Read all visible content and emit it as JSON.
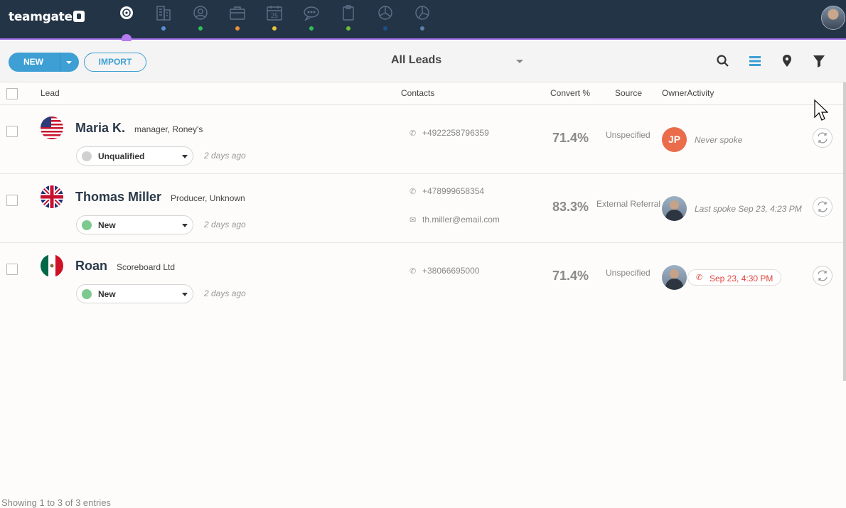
{
  "app": {
    "logo_text": "teamgate"
  },
  "nav": {
    "icons": [
      {
        "name": "leads-target-icon",
        "dot_color": "#a06ee8"
      },
      {
        "name": "companies-building-icon",
        "dot_color": "#5b8fd6"
      },
      {
        "name": "contacts-person-icon",
        "dot_color": "#2fbf5a"
      },
      {
        "name": "deals-briefcase-icon",
        "dot_color": "#e8913a"
      },
      {
        "name": "calendar-icon",
        "dot_color": "#e8c53a",
        "text": "25"
      },
      {
        "name": "chat-icon",
        "dot_color": "#2fbf5a"
      },
      {
        "name": "clipboard-icon",
        "dot_color": "#6cbf2f"
      },
      {
        "name": "reports-pie-icon",
        "dot_color": "#1d4f8a"
      },
      {
        "name": "analytics-pie-icon",
        "dot_color": "#5b7fa6"
      }
    ]
  },
  "toolbar": {
    "new_label": "NEW",
    "import_label": "IMPORT",
    "view_label": "All Leads",
    "icons": [
      "search-icon",
      "list-view-icon",
      "map-pin-icon",
      "filter-icon"
    ]
  },
  "table": {
    "headers": {
      "lead": "Lead",
      "contacts": "Contacts",
      "convert": "Convert %",
      "source": "Source",
      "owner_activity": "OwnerActivity"
    },
    "rows": [
      {
        "flag": "us-flag-icon",
        "name": "Maria K.",
        "subtitle": "manager, Roney's",
        "status": "Unqualified",
        "status_color": "#d0d0d0",
        "ago": "2 days ago",
        "phone": "+4922258796359",
        "email": "",
        "convert": "71.4%",
        "source": "Unspecified",
        "owner_initials": "JP",
        "activity": "Never spoke"
      },
      {
        "flag": "uk-flag-icon",
        "name": "Thomas Miller",
        "subtitle": "Producer, Unknown",
        "status": "New",
        "status_color": "#7dc98f",
        "ago": "2 days ago",
        "phone": "+478999658354",
        "email": "th.miller@email.com",
        "convert": "83.3%",
        "source": "External Referral",
        "owner_initials": "",
        "activity": "Last spoke Sep 23, 4:23 PM"
      },
      {
        "flag": "mx-flag-icon",
        "name": "Roan",
        "subtitle": "Scoreboard Ltd",
        "status": "New",
        "status_color": "#7dc98f",
        "ago": "2 days ago",
        "phone": "+38066695000",
        "email": "",
        "convert": "71.4%",
        "source": "Unspecified",
        "owner_initials": "",
        "activity": "Sep 23, 4:30 PM"
      }
    ]
  },
  "footer": {
    "entries_text": "Showing 1 to 3 of 3 entries"
  }
}
